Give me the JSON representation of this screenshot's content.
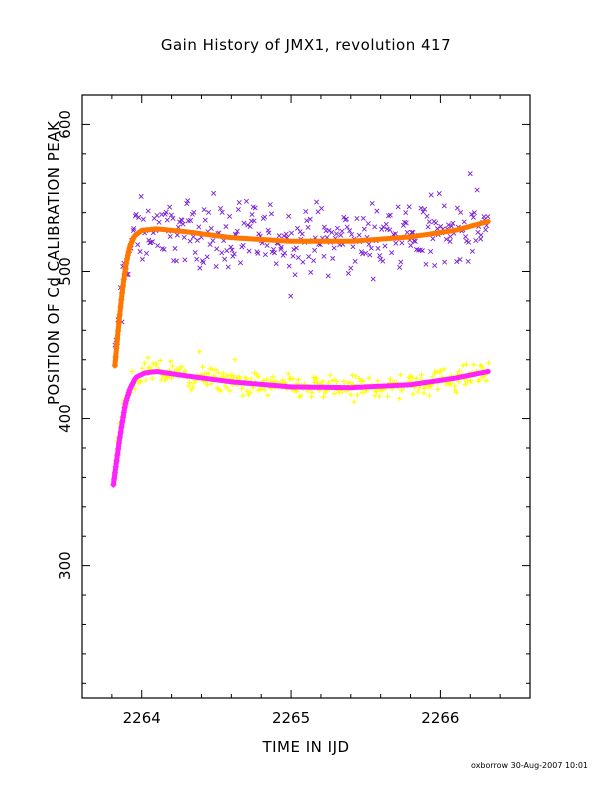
{
  "chart_data": {
    "type": "scatter",
    "title": "Gain History of JMX1, revolution 417",
    "xlabel": "TIME IN IJD",
    "ylabel": "POSITION OF Cd CALIBRATION PEAK",
    "xlim": [
      2263.6,
      2266.6
    ],
    "ylim": [
      210,
      620
    ],
    "xticks": [
      2264,
      2265,
      2266
    ],
    "yticks": [
      300,
      400,
      500,
      600
    ],
    "footer": "oxborrow 30-Aug-2007 10:01",
    "grid": false,
    "series": [
      {
        "marker": "x",
        "color": "#7a1fd6",
        "x_range": [
          2263.82,
          2266.32
        ],
        "center": [
          [
            2263.82,
            440
          ],
          [
            2263.88,
            495
          ],
          [
            2263.94,
            525
          ],
          [
            2264.05,
            530
          ],
          [
            2264.3,
            528
          ],
          [
            2264.6,
            523
          ],
          [
            2265.0,
            521
          ],
          [
            2265.4,
            521
          ],
          [
            2265.8,
            524
          ],
          [
            2266.1,
            529
          ],
          [
            2266.32,
            532
          ]
        ],
        "spread": 15,
        "count": 330
      },
      {
        "marker": "+",
        "color": "#ffff00",
        "x_range": [
          2263.82,
          2266.32
        ],
        "center": [
          [
            2263.82,
            368
          ],
          [
            2263.87,
            405
          ],
          [
            2263.93,
            425
          ],
          [
            2264.05,
            432
          ],
          [
            2264.3,
            429
          ],
          [
            2264.6,
            425
          ],
          [
            2265.0,
            421
          ],
          [
            2265.4,
            421
          ],
          [
            2265.8,
            423
          ],
          [
            2266.1,
            427
          ],
          [
            2266.32,
            431
          ]
        ],
        "spread": 6,
        "count": 330
      },
      {
        "type": "fit",
        "color": "#ff7700",
        "points": [
          [
            2263.82,
            436
          ],
          [
            2263.84,
            458
          ],
          [
            2263.86,
            478
          ],
          [
            2263.88,
            495
          ],
          [
            2263.9,
            508
          ],
          [
            2263.92,
            517
          ],
          [
            2263.95,
            524
          ],
          [
            2264.0,
            528
          ],
          [
            2264.1,
            529
          ],
          [
            2264.3,
            527
          ],
          [
            2264.6,
            523
          ],
          [
            2265.0,
            520.5
          ],
          [
            2265.4,
            520.5
          ],
          [
            2265.8,
            523.5
          ],
          [
            2266.1,
            528
          ],
          [
            2266.32,
            534
          ]
        ]
      },
      {
        "type": "fit",
        "color": "#ff22ff",
        "points": [
          [
            2263.81,
            355
          ],
          [
            2263.83,
            370
          ],
          [
            2263.85,
            385
          ],
          [
            2263.87,
            398
          ],
          [
            2263.89,
            410
          ],
          [
            2263.92,
            420
          ],
          [
            2263.96,
            428
          ],
          [
            2264.02,
            431
          ],
          [
            2264.1,
            432
          ],
          [
            2264.3,
            429
          ],
          [
            2264.6,
            425
          ],
          [
            2265.0,
            421.5
          ],
          [
            2265.4,
            421
          ],
          [
            2265.8,
            423
          ],
          [
            2266.1,
            427.5
          ],
          [
            2266.32,
            432
          ]
        ]
      }
    ]
  }
}
